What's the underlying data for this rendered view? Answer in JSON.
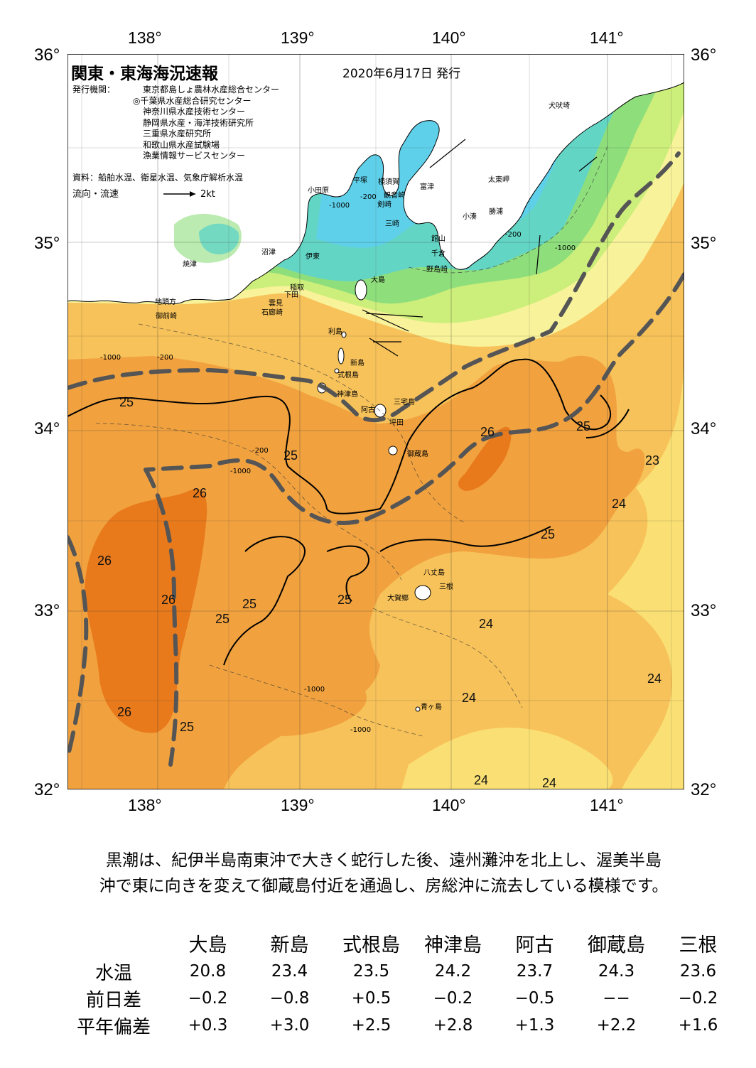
{
  "map": {
    "title": "関東・東海海況速報",
    "date": "2020年6月17日 発行",
    "issuer_label": "発行機関：",
    "issuers": [
      "東京都島しょ農林水産総合センター",
      "◎千葉県水産総合研究センター",
      "神奈川県水産技術センター",
      "静岡県水産・海洋技術研究所",
      "三重県水産研究所",
      "和歌山県水産試験場",
      "漁業情報サービスセンター"
    ],
    "source": "資料：船舶水温、衛星水温、気象庁解析水温",
    "flow_label": "流向・流速",
    "flow_scale": "2kt",
    "lon_labels": [
      "138°",
      "139°",
      "140°",
      "141°"
    ],
    "lat_labels": [
      "36°",
      "35°",
      "34°",
      "33°",
      "32°"
    ],
    "place_names": [
      "犬吠埼",
      "太東岬",
      "勝浦",
      "小湊",
      "館山",
      "千倉",
      "野島崎",
      "富津",
      "観音崎",
      "剣崎",
      "三崎",
      "横須賀",
      "平塚",
      "小田原",
      "沼津",
      "伊東",
      "焼津",
      "稲取",
      "下田",
      "雲見",
      "石廊崎",
      "地頭方",
      "御前崎",
      "大島",
      "利島",
      "新島",
      "式根島",
      "神津島",
      "三宅島",
      "阿古",
      "坪田",
      "御蔵島",
      "八丈島",
      "三根",
      "大賀郷",
      "青ヶ島"
    ],
    "isotherm_labels": [
      "25",
      "25",
      "26",
      "25",
      "23",
      "26",
      "24",
      "25",
      "26",
      "26",
      "25",
      "25",
      "25",
      "24",
      "24",
      "24",
      "26",
      "25",
      "24",
      "24"
    ],
    "depth_labels": [
      "-200",
      "-1000",
      "-200",
      "-1000",
      "-200",
      "-1000",
      "-1000",
      "-200",
      "-1000",
      "-1000"
    ],
    "colors": {
      "land": "#ffffff",
      "t26": "#e87a1c",
      "t25": "#f1a23f",
      "t24": "#f7c25a",
      "t23": "#fae074",
      "t22": "#f8f39a",
      "t21": "#ccee7a",
      "t20": "#8ede7c",
      "t19": "#63d5c5",
      "t18": "#5fd0ea",
      "t17": "#3fb4f2",
      "t16": "#2a88e6",
      "kuroshio_axis": "#555555"
    }
  },
  "summary": {
    "line1": "黒潮は、紀伊半島南東沖で大きく蛇行した後、遠州灘沖を北上し、渥美半島",
    "line2": "沖で東に向きを変えて御蔵島付近を通過し、房総沖に流去している模様です。"
  },
  "table": {
    "columns": [
      "大島",
      "新島",
      "式根島",
      "神津島",
      "阿古",
      "御蔵島",
      "三根"
    ],
    "rows": [
      {
        "label": "水温",
        "values": [
          "20.8",
          "23.4",
          "23.5",
          "24.2",
          "23.7",
          "24.3",
          "23.6"
        ]
      },
      {
        "label": "前日差",
        "values": [
          "−0.2",
          "−0.8",
          "+0.5",
          "−0.2",
          "−0.5",
          "−−",
          "−0.2"
        ]
      },
      {
        "label": "平年偏差",
        "values": [
          "+0.3",
          "+3.0",
          "+2.5",
          "+2.8",
          "+1.3",
          "+2.2",
          "+1.6"
        ]
      }
    ]
  }
}
